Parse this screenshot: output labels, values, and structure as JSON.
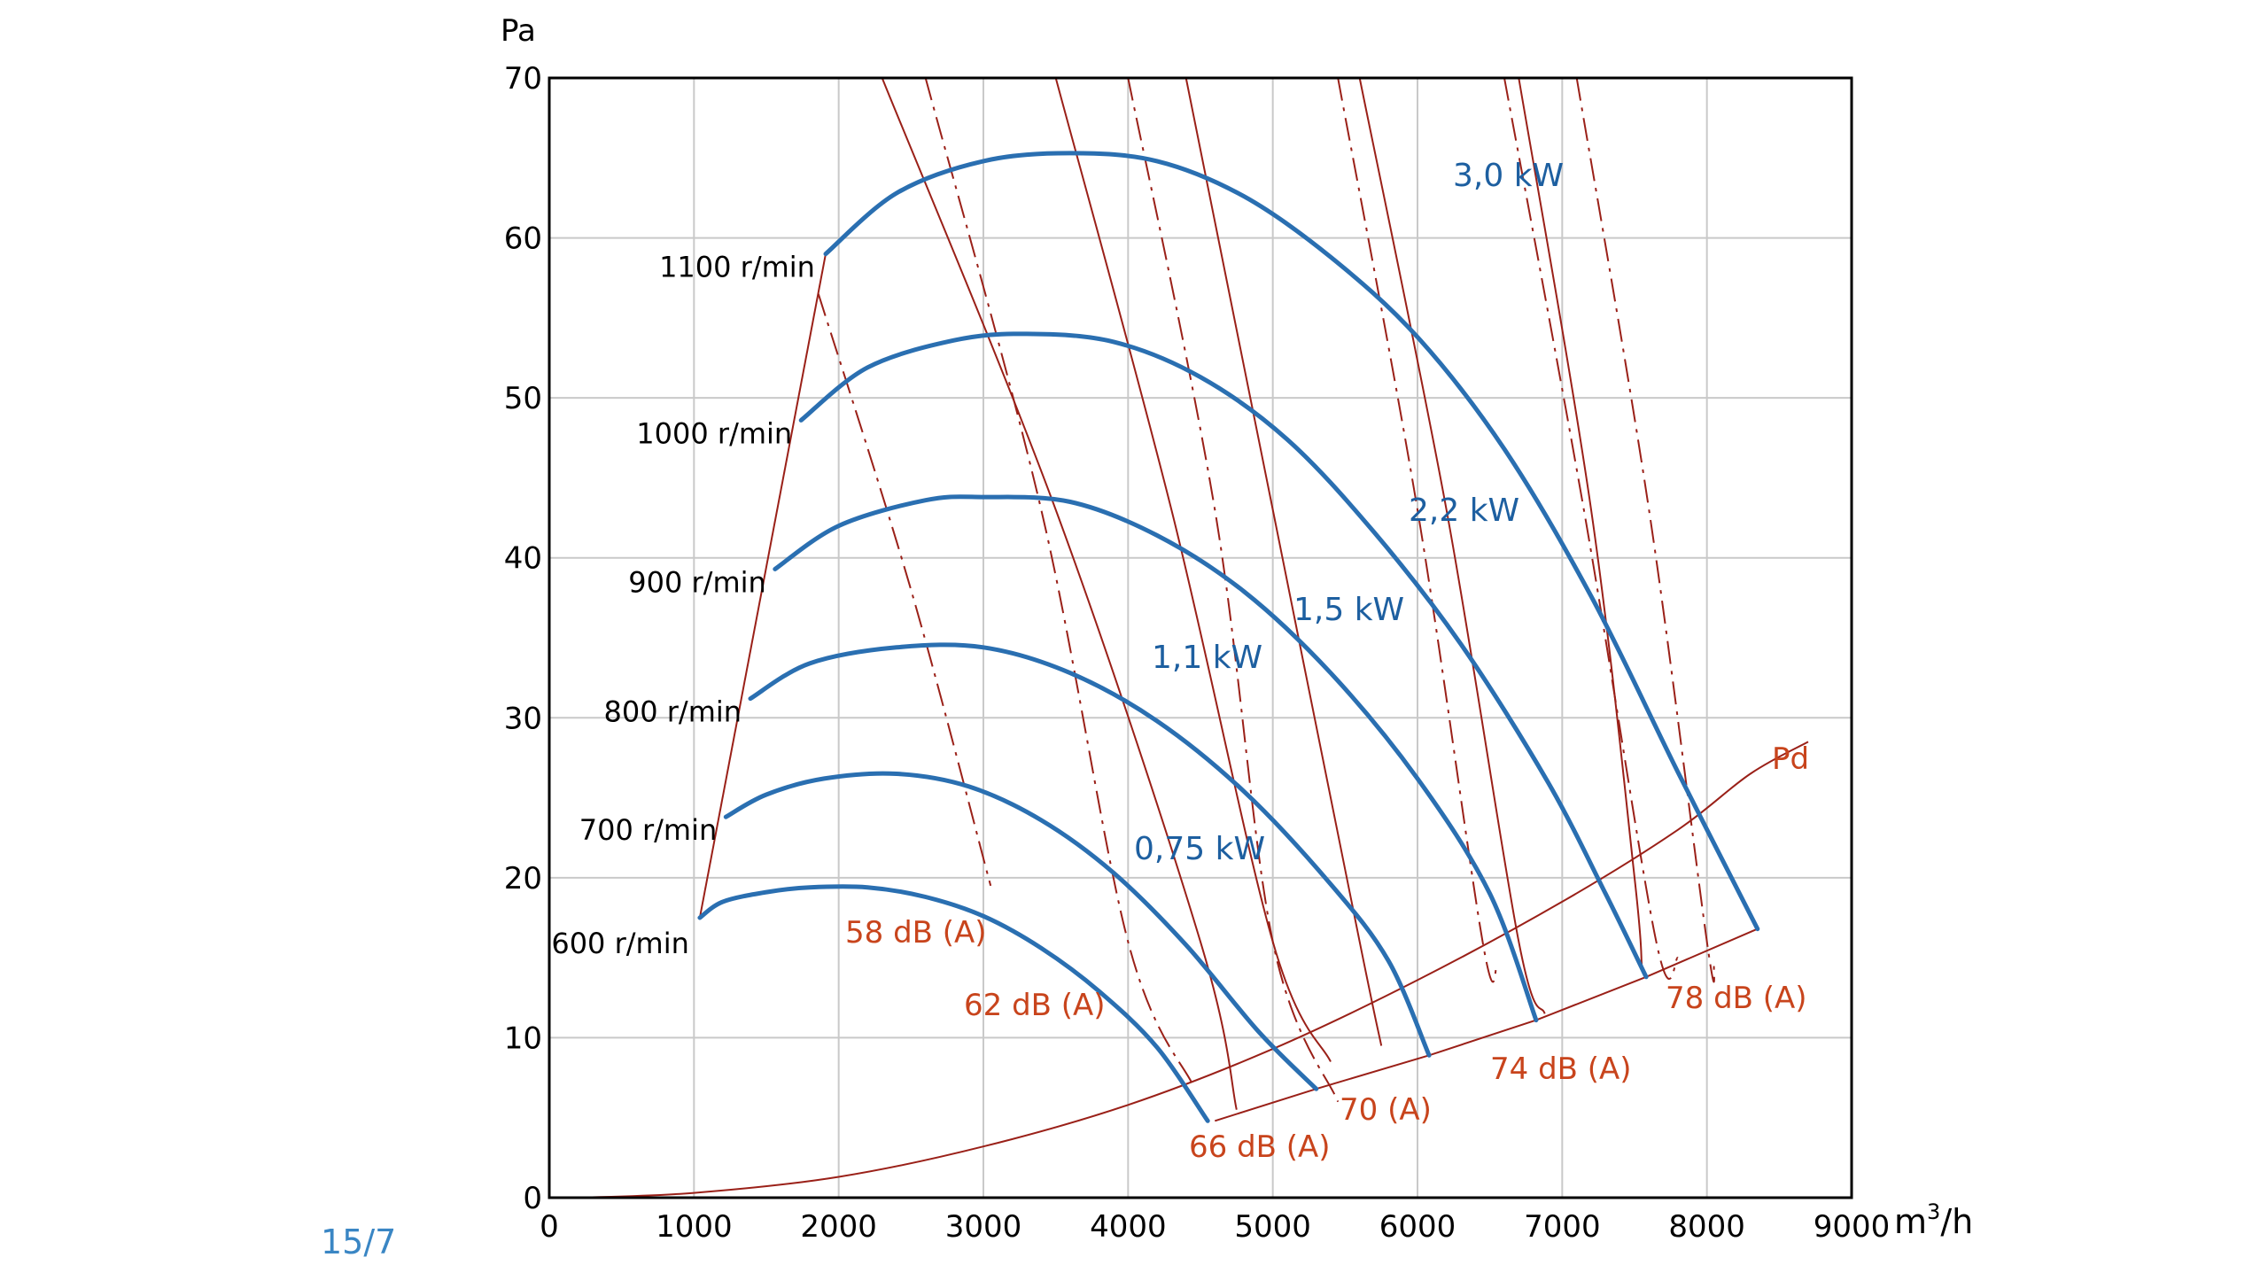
{
  "page_label": "15/7",
  "colors": {
    "fan_curve": "#2a6fb1",
    "power_label": "#1d5fa0",
    "system_line": "#9a2018",
    "noise_label": "#c8441c",
    "grid": "#c9c9c9",
    "frame": "#000000",
    "page_label": "#3a86c4"
  },
  "chart_data": {
    "type": "line",
    "y_unit": "Pa",
    "x_unit_base": "m",
    "x_unit_sup": "3",
    "x_unit_tail": "/h",
    "xlim": [
      0,
      9000
    ],
    "ylim": [
      0,
      70
    ],
    "x_ticks": [
      "0",
      "1000",
      "2000",
      "3000",
      "4000",
      "5000",
      "6000",
      "7000",
      "8000",
      "9000"
    ],
    "y_ticks": [
      "0",
      "10",
      "20",
      "30",
      "40",
      "50",
      "60",
      "70"
    ],
    "grid": true,
    "series": [
      {
        "name": "600 r/min",
        "points": [
          [
            1040,
            17.5
          ],
          [
            1200,
            18.5
          ],
          [
            1500,
            19.1
          ],
          [
            1800,
            19.4
          ],
          [
            2200,
            19.4
          ],
          [
            2600,
            18.8
          ],
          [
            3000,
            17.6
          ],
          [
            3400,
            15.6
          ],
          [
            3800,
            12.9
          ],
          [
            4200,
            9.4
          ],
          [
            4550,
            4.8
          ]
        ]
      },
      {
        "name": "700 r/min",
        "points": [
          [
            1220,
            23.8
          ],
          [
            1500,
            25.2
          ],
          [
            1900,
            26.2
          ],
          [
            2400,
            26.5
          ],
          [
            2900,
            25.7
          ],
          [
            3400,
            23.6
          ],
          [
            3900,
            20.3
          ],
          [
            4400,
            15.8
          ],
          [
            4900,
            10.4
          ],
          [
            5300,
            6.8
          ]
        ]
      },
      {
        "name": "800 r/min",
        "points": [
          [
            1390,
            31.2
          ],
          [
            1800,
            33.4
          ],
          [
            2400,
            34.4
          ],
          [
            3000,
            34.4
          ],
          [
            3600,
            32.8
          ],
          [
            4200,
            29.8
          ],
          [
            4800,
            25.4
          ],
          [
            5400,
            19.6
          ],
          [
            5800,
            14.8
          ],
          [
            6080,
            8.9
          ]
        ]
      },
      {
        "name": "900 r/min",
        "points": [
          [
            1560,
            39.3
          ],
          [
            2000,
            42.0
          ],
          [
            2600,
            43.6
          ],
          [
            3000,
            43.8
          ],
          [
            3600,
            43.5
          ],
          [
            4200,
            41.4
          ],
          [
            4800,
            37.9
          ],
          [
            5400,
            32.8
          ],
          [
            6000,
            26.2
          ],
          [
            6500,
            19.0
          ],
          [
            6820,
            11.1
          ]
        ]
      },
      {
        "name": "1000 r/min",
        "points": [
          [
            1740,
            48.6
          ],
          [
            2200,
            51.9
          ],
          [
            2800,
            53.6
          ],
          [
            3300,
            54.0
          ],
          [
            3900,
            53.5
          ],
          [
            4500,
            51.3
          ],
          [
            5100,
            47.4
          ],
          [
            5700,
            41.6
          ],
          [
            6300,
            34.6
          ],
          [
            6900,
            26.0
          ],
          [
            7300,
            19.0
          ],
          [
            7580,
            13.8
          ]
        ]
      },
      {
        "name": "1100 r/min",
        "points": [
          [
            1910,
            59.0
          ],
          [
            2400,
            62.8
          ],
          [
            3000,
            64.8
          ],
          [
            3600,
            65.3
          ],
          [
            4200,
            64.8
          ],
          [
            4800,
            62.6
          ],
          [
            5400,
            58.8
          ],
          [
            6000,
            53.8
          ],
          [
            6600,
            46.8
          ],
          [
            7200,
            37.6
          ],
          [
            7800,
            26.6
          ],
          [
            8350,
            16.8
          ]
        ]
      }
    ],
    "speed_labels": [
      "600 r/min",
      "700 r/min",
      "800 r/min",
      "900 r/min",
      "1000 r/min",
      "1100 r/min"
    ],
    "power_lines": [
      {
        "label": "0,75 kW",
        "points": [
          [
            2300,
            70
          ],
          [
            3500,
            43
          ],
          [
            4500,
            16
          ],
          [
            4750,
            5.5
          ]
        ],
        "dash": false
      },
      {
        "label": "1,1 kW",
        "points": [
          [
            3500,
            70
          ],
          [
            4300,
            43
          ],
          [
            5000,
            16
          ],
          [
            5400,
            8.5
          ]
        ],
        "dash": false
      },
      {
        "label": "1,5 kW",
        "points": [
          [
            4400,
            70
          ],
          [
            5000,
            43
          ],
          [
            5600,
            16
          ],
          [
            5750,
            9.5
          ]
        ],
        "dash": false
      },
      {
        "label": "2,2 kW",
        "points": [
          [
            5600,
            70
          ],
          [
            6200,
            43
          ],
          [
            6700,
            16
          ],
          [
            6880,
            11.5
          ]
        ],
        "dash": false
      },
      {
        "label": "3,0 kW",
        "points": [
          [
            6700,
            70
          ],
          [
            7200,
            43
          ],
          [
            7500,
            20
          ],
          [
            7550,
            14.5
          ]
        ],
        "dash": false
      }
    ],
    "noise_lines": [
      {
        "label": "58 dB (A)",
        "points": [
          [
            1860,
            56.5
          ],
          [
            2500,
            38
          ],
          [
            3050,
            19.5
          ]
        ],
        "dash": true
      },
      {
        "label": "62 dB (A)",
        "points": [
          [
            2600,
            70
          ],
          [
            3400,
            43
          ],
          [
            4000,
            16
          ],
          [
            4450,
            7
          ]
        ],
        "dash": true
      },
      {
        "label": "66 dB (A)",
        "points": [
          [
            4000,
            70
          ],
          [
            4600,
            43
          ],
          [
            5000,
            16
          ],
          [
            5450,
            6
          ]
        ],
        "dash": true
      },
      {
        "label": "70 (A)",
        "points": [
          [
            5450,
            70
          ],
          [
            6000,
            43
          ],
          [
            6450,
            16
          ],
          [
            6550,
            14.5
          ]
        ],
        "dash": true
      },
      {
        "label": "74 dB (A)",
        "points": [
          [
            6600,
            70
          ],
          [
            7150,
            43
          ],
          [
            7650,
            16
          ],
          [
            7800,
            15
          ]
        ],
        "dash": true
      },
      {
        "label": "78 dB (A)",
        "points": [
          [
            7100,
            70
          ],
          [
            7600,
            43
          ],
          [
            8000,
            16
          ],
          [
            8050,
            14.5
          ]
        ],
        "dash": true
      }
    ],
    "limit_line": {
      "points": [
        [
          1040,
          17.5
        ],
        [
          1910,
          59.0
        ]
      ]
    },
    "base_line": {
      "points": [
        [
          4600,
          4.8
        ],
        [
          5300,
          6.8
        ],
        [
          6080,
          8.9
        ],
        [
          6820,
          11.1
        ],
        [
          7580,
          13.8
        ],
        [
          8350,
          16.8
        ]
      ]
    },
    "pd_curve": {
      "label": "Pd",
      "points": [
        [
          200,
          0
        ],
        [
          1000,
          0.3
        ],
        [
          2000,
          1.3
        ],
        [
          3000,
          3.2
        ],
        [
          4000,
          5.8
        ],
        [
          5000,
          9.3
        ],
        [
          6000,
          13.6
        ],
        [
          7000,
          18.5
        ],
        [
          7800,
          23.0
        ],
        [
          8300,
          26.5
        ],
        [
          8700,
          28.5
        ]
      ]
    }
  }
}
